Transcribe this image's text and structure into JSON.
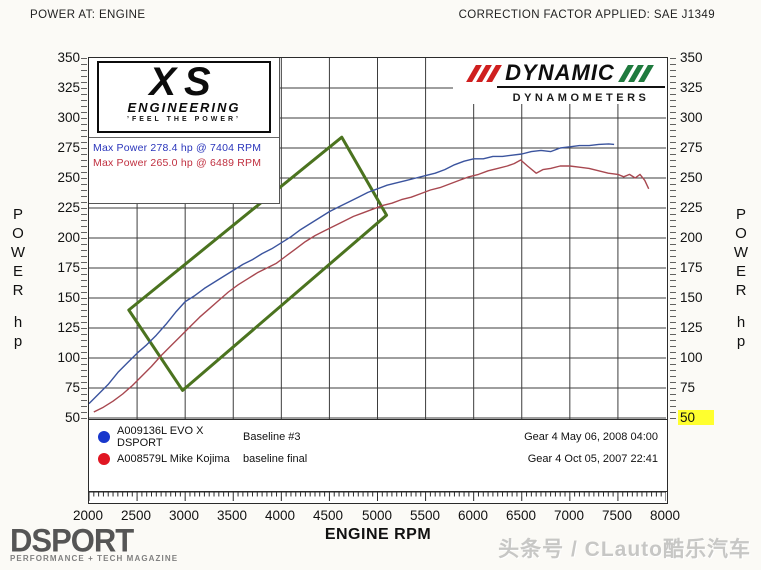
{
  "header": {
    "left": "POWER AT: ENGINE",
    "right": "CORRECTION FACTOR APPLIED: SAE J1349"
  },
  "axes": {
    "y_axis_word": "POWER",
    "y_axis_unit": "hp",
    "x_label": "ENGINE RPM",
    "y_ticks": [
      350,
      325,
      300,
      275,
      250,
      225,
      200,
      175,
      150,
      125,
      100,
      75,
      50
    ],
    "x_ticks": [
      2000,
      2500,
      3000,
      3500,
      4000,
      4500,
      5000,
      5500,
      6000,
      6500,
      7000,
      7500,
      8000
    ],
    "highlighted_y_tick": 50,
    "highlight_color": "#ffff2e"
  },
  "annotations": {
    "max_power": [
      {
        "text": "Max Power 278.4 hp @ 7404 RPM",
        "color": "#2a35bb"
      },
      {
        "text": "Max Power 265.0 hp @ 6489 RPM",
        "color": "#c03040"
      }
    ]
  },
  "logos": {
    "xs": {
      "main": "XS",
      "sub": "ENGINEERING",
      "tagline": "’FEEL THE POWER’"
    },
    "dynamic": {
      "name": "DYNAMIC",
      "sub": "DYNAMOMETERS",
      "red": "#cf1f1f",
      "green": "#1f7a3e"
    },
    "dsport": {
      "name": "DSPORT",
      "tagline": "PERFORMANCE + TECH MAGAZINE"
    }
  },
  "legend": {
    "rows": [
      {
        "marker_color": "#1837cc",
        "name": "A009136L EVO X DSPORT",
        "desc": "Baseline #3",
        "date": "Gear 4 May 06, 2008 04:00"
      },
      {
        "marker_color": "#e01622",
        "name": "A008579L Mike Kojima",
        "desc": "baseline final",
        "date": "Gear 4 Oct 05, 2007 22:41"
      }
    ]
  },
  "watermark": "头条号 / CLauto酷乐汽车",
  "chart_data": {
    "type": "line",
    "title": "POWER AT: ENGINE",
    "xlabel": "ENGINE RPM",
    "ylabel": "POWER hp",
    "xlim": [
      2000,
      8000
    ],
    "ylim": [
      50,
      350
    ],
    "x_tick_step": 500,
    "y_tick_step": 25,
    "grid": true,
    "correction_factor": "SAE J1349",
    "grid_color": "#3d3d3d",
    "highlight_box": {
      "color": "#4b731f",
      "corners_rpm_hp": [
        [
          4629,
          284
        ],
        [
          5095,
          219
        ],
        [
          2973,
          73
        ],
        [
          2414,
          140
        ]
      ]
    },
    "series": [
      {
        "name": "A009136L EVO X DSPORT",
        "run": "Baseline #3",
        "gear_time": "Gear 4 May 06, 2008 04:00",
        "color": "#3b549e",
        "max_power": {
          "hp": 278.4,
          "rpm": 7404
        },
        "points": [
          [
            2000,
            62
          ],
          [
            2100,
            70
          ],
          [
            2200,
            78
          ],
          [
            2300,
            88
          ],
          [
            2400,
            96
          ],
          [
            2500,
            104
          ],
          [
            2600,
            111
          ],
          [
            2700,
            119
          ],
          [
            2800,
            128
          ],
          [
            2900,
            138
          ],
          [
            3000,
            147
          ],
          [
            3100,
            152
          ],
          [
            3200,
            158
          ],
          [
            3300,
            163
          ],
          [
            3400,
            168
          ],
          [
            3500,
            173
          ],
          [
            3600,
            178
          ],
          [
            3700,
            182
          ],
          [
            3800,
            187
          ],
          [
            3900,
            191
          ],
          [
            4000,
            196
          ],
          [
            4100,
            201
          ],
          [
            4200,
            207
          ],
          [
            4300,
            212
          ],
          [
            4400,
            217
          ],
          [
            4500,
            222
          ],
          [
            4600,
            226
          ],
          [
            4700,
            230
          ],
          [
            4800,
            234
          ],
          [
            4900,
            238
          ],
          [
            5000,
            241
          ],
          [
            5100,
            244
          ],
          [
            5200,
            246
          ],
          [
            5300,
            248
          ],
          [
            5400,
            250
          ],
          [
            5500,
            252
          ],
          [
            5600,
            254
          ],
          [
            5700,
            257
          ],
          [
            5800,
            261
          ],
          [
            5900,
            264
          ],
          [
            6000,
            266
          ],
          [
            6100,
            266
          ],
          [
            6200,
            268
          ],
          [
            6300,
            268
          ],
          [
            6400,
            269
          ],
          [
            6500,
            270
          ],
          [
            6600,
            272
          ],
          [
            6700,
            273
          ],
          [
            6800,
            272
          ],
          [
            6900,
            275
          ],
          [
            7000,
            276
          ],
          [
            7100,
            277
          ],
          [
            7200,
            277
          ],
          [
            7300,
            278
          ],
          [
            7404,
            278.4
          ],
          [
            7460,
            278
          ]
        ]
      },
      {
        "name": "A008579L Mike Kojima",
        "run": "baseline final",
        "gear_time": "Gear 4 Oct 05, 2007 22:41",
        "color": "#a84850",
        "max_power": {
          "hp": 265.0,
          "rpm": 6489
        },
        "points": [
          [
            2050,
            55
          ],
          [
            2150,
            59
          ],
          [
            2250,
            64
          ],
          [
            2350,
            70
          ],
          [
            2450,
            77
          ],
          [
            2550,
            85
          ],
          [
            2650,
            93
          ],
          [
            2750,
            102
          ],
          [
            2850,
            110
          ],
          [
            2950,
            118
          ],
          [
            3050,
            126
          ],
          [
            3150,
            134
          ],
          [
            3250,
            141
          ],
          [
            3350,
            148
          ],
          [
            3450,
            155
          ],
          [
            3550,
            161
          ],
          [
            3650,
            166
          ],
          [
            3750,
            171
          ],
          [
            3850,
            175
          ],
          [
            3950,
            179
          ],
          [
            4050,
            185
          ],
          [
            4150,
            191
          ],
          [
            4250,
            197
          ],
          [
            4350,
            202
          ],
          [
            4450,
            206
          ],
          [
            4550,
            210
          ],
          [
            4650,
            214
          ],
          [
            4750,
            218
          ],
          [
            4850,
            221
          ],
          [
            4950,
            224
          ],
          [
            5050,
            227
          ],
          [
            5150,
            229
          ],
          [
            5250,
            232
          ],
          [
            5350,
            234
          ],
          [
            5450,
            237
          ],
          [
            5550,
            240
          ],
          [
            5650,
            242
          ],
          [
            5750,
            245
          ],
          [
            5850,
            248
          ],
          [
            5950,
            251
          ],
          [
            6050,
            253
          ],
          [
            6150,
            256
          ],
          [
            6250,
            258
          ],
          [
            6350,
            260
          ],
          [
            6420,
            262
          ],
          [
            6489,
            265
          ],
          [
            6560,
            260
          ],
          [
            6650,
            254
          ],
          [
            6720,
            257
          ],
          [
            6800,
            258
          ],
          [
            6900,
            260
          ],
          [
            7000,
            260
          ],
          [
            7100,
            259
          ],
          [
            7200,
            258
          ],
          [
            7300,
            256
          ],
          [
            7400,
            254
          ],
          [
            7500,
            253
          ],
          [
            7560,
            251
          ],
          [
            7620,
            253
          ],
          [
            7680,
            250
          ],
          [
            7730,
            253
          ],
          [
            7780,
            248
          ],
          [
            7820,
            241
          ]
        ]
      }
    ]
  }
}
